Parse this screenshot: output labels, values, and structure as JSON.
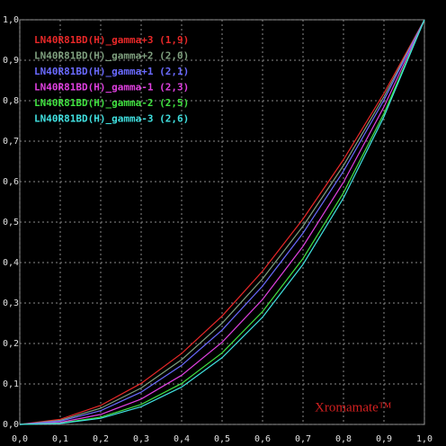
{
  "chart_data": {
    "type": "line",
    "watermark": "Xromamate™",
    "x": [
      0,
      0.1,
      0.2,
      0.3,
      0.4,
      0.5,
      0.6,
      0.7,
      0.8,
      0.9,
      1.0
    ],
    "series": [
      {
        "name": "LN40R81BD(H)_gamma+3 (1,9)",
        "color": "#e82828",
        "values": [
          0,
          0.0126,
          0.047,
          0.1015,
          0.1754,
          0.2679,
          0.3789,
          0.5078,
          0.6544,
          0.8186,
          1
        ]
      },
      {
        "name": "LN40R81BD(H)_gamma+2 (2,0)",
        "color": "#7fa07f",
        "values": [
          0,
          0.01,
          0.04,
          0.09,
          0.16,
          0.25,
          0.36,
          0.49,
          0.64,
          0.81,
          1
        ]
      },
      {
        "name": "LN40R81BD(H)_gamma+1 (2,1)",
        "color": "#6a6aff",
        "values": [
          0,
          0.0079,
          0.034,
          0.0798,
          0.146,
          0.2333,
          0.342,
          0.4728,
          0.626,
          0.8015,
          1
        ]
      },
      {
        "name": "LN40R81BD(H)_gamma-1 (2,3)",
        "color": "#e040e0",
        "values": [
          0,
          0.005,
          0.0247,
          0.0627,
          0.1215,
          0.2031,
          0.3089,
          0.4403,
          0.5986,
          0.7848,
          1
        ]
      },
      {
        "name": "LN40R81BD(H)_gamma-2 (2,5)",
        "color": "#40e040",
        "values": [
          0,
          0.0032,
          0.0179,
          0.0493,
          0.1012,
          0.1768,
          0.2789,
          0.41,
          0.5724,
          0.7684,
          1
        ]
      },
      {
        "name": "LN40R81BD(H)_gamma-3 (2,6)",
        "color": "#40e0e0",
        "values": [
          0,
          0.0025,
          0.0152,
          0.0437,
          0.0923,
          0.1649,
          0.265,
          0.3956,
          0.5598,
          0.7604,
          1
        ]
      }
    ],
    "xlim": [
      0,
      1
    ],
    "ylim": [
      0,
      1
    ],
    "xticks": [
      {
        "value": 0,
        "label": "0,0"
      },
      {
        "value": 0.1,
        "label": "0,1"
      },
      {
        "value": 0.2,
        "label": "0,2"
      },
      {
        "value": 0.3,
        "label": "0,3"
      },
      {
        "value": 0.4,
        "label": "0,4"
      },
      {
        "value": 0.5,
        "label": "0,5"
      },
      {
        "value": 0.6,
        "label": "0,6"
      },
      {
        "value": 0.7,
        "label": "0,7"
      },
      {
        "value": 0.8,
        "label": "0,8"
      },
      {
        "value": 0.9,
        "label": "0,9"
      },
      {
        "value": 1,
        "label": "1,0"
      }
    ],
    "yticks": [
      {
        "value": 0,
        "label": "0,0"
      },
      {
        "value": 0.1,
        "label": "0,1"
      },
      {
        "value": 0.2,
        "label": "0,2"
      },
      {
        "value": 0.3,
        "label": "0,3"
      },
      {
        "value": 0.4,
        "label": "0,4"
      },
      {
        "value": 0.5,
        "label": "0,5"
      },
      {
        "value": 0.6,
        "label": "0,6"
      },
      {
        "value": 0.7,
        "label": "0,7"
      },
      {
        "value": 0.8,
        "label": "0,8"
      },
      {
        "value": 0.9,
        "label": "0,9"
      },
      {
        "value": 1,
        "label": "1,0"
      }
    ],
    "grid": true,
    "legend": "upper left"
  }
}
